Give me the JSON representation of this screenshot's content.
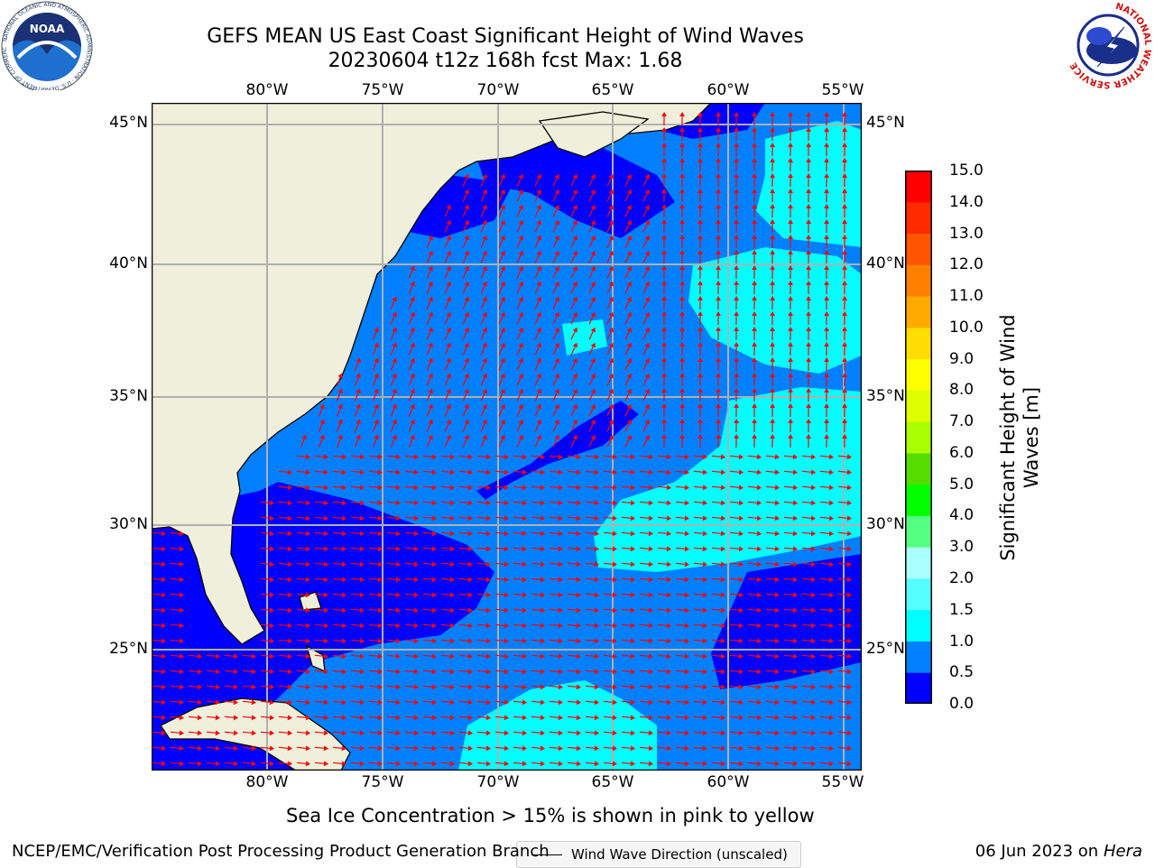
{
  "title": {
    "line1": "GEFS MEAN US East Coast Significant Height of Wind Waves",
    "line2": "20230604 t12z 168h fcst   Max: 1.68"
  },
  "map": {
    "lon_ticks": [
      "80°W",
      "75°W",
      "70°W",
      "65°W",
      "60°W",
      "55°W"
    ],
    "lat_ticks": [
      "45°N",
      "40°N",
      "35°N",
      "30°N",
      "25°N"
    ],
    "legend_label": "Wind Wave Direction (unscaled)",
    "colors": {
      "land": "#efefdb",
      "ocean_0_0_5": "#0000ff",
      "ocean_0_5_1_0": "#0080ff",
      "ocean_1_0_1_5": "#00ffff",
      "grid": "#b0b0b0",
      "arrows": "#ff0000"
    },
    "extent": {
      "lon": [
        -85,
        -54.5
      ],
      "lat": [
        20.5,
        46
      ]
    }
  },
  "colorbar": {
    "label": "Significant Height of Wind Waves [m]",
    "label_line1": "Significant Height of Wind",
    "label_line2": "Waves [m]",
    "ticks": [
      "15.0",
      "14.0",
      "13.0",
      "12.0",
      "11.0",
      "10.0",
      "9.0",
      "8.0",
      "7.0",
      "6.0",
      "5.0",
      "4.0",
      "3.0",
      "2.0",
      "1.5",
      "1.0",
      "0.5",
      "0.0"
    ],
    "colors_bottom_to_top": [
      "#0000ff",
      "#0080ff",
      "#00ffff",
      "#55ffff",
      "#aaffff",
      "#55ff80",
      "#00ff00",
      "#55dd00",
      "#aaff00",
      "#ddff00",
      "#ffff00",
      "#ffdd00",
      "#ffaa00",
      "#ff8000",
      "#ff5500",
      "#ff2a00",
      "#ff0000"
    ]
  },
  "note": "Sea Ice Concentration > 15% is shown in pink to yellow",
  "footer": {
    "left": "NCEP/EMC/Verification Post Processing Product Generation Branch",
    "right_date": "06 Jun 2023 on",
    "right_host": "Hera"
  },
  "logos": {
    "noaa": "NOAA",
    "noaa_ring": "NATIONAL OCEANIC AND ATMOSPHERIC ADMINISTRATION · U.S. DEPARTMENT OF COMMERCE",
    "nws_ring": "NATIONAL WEATHER SERVICE"
  }
}
